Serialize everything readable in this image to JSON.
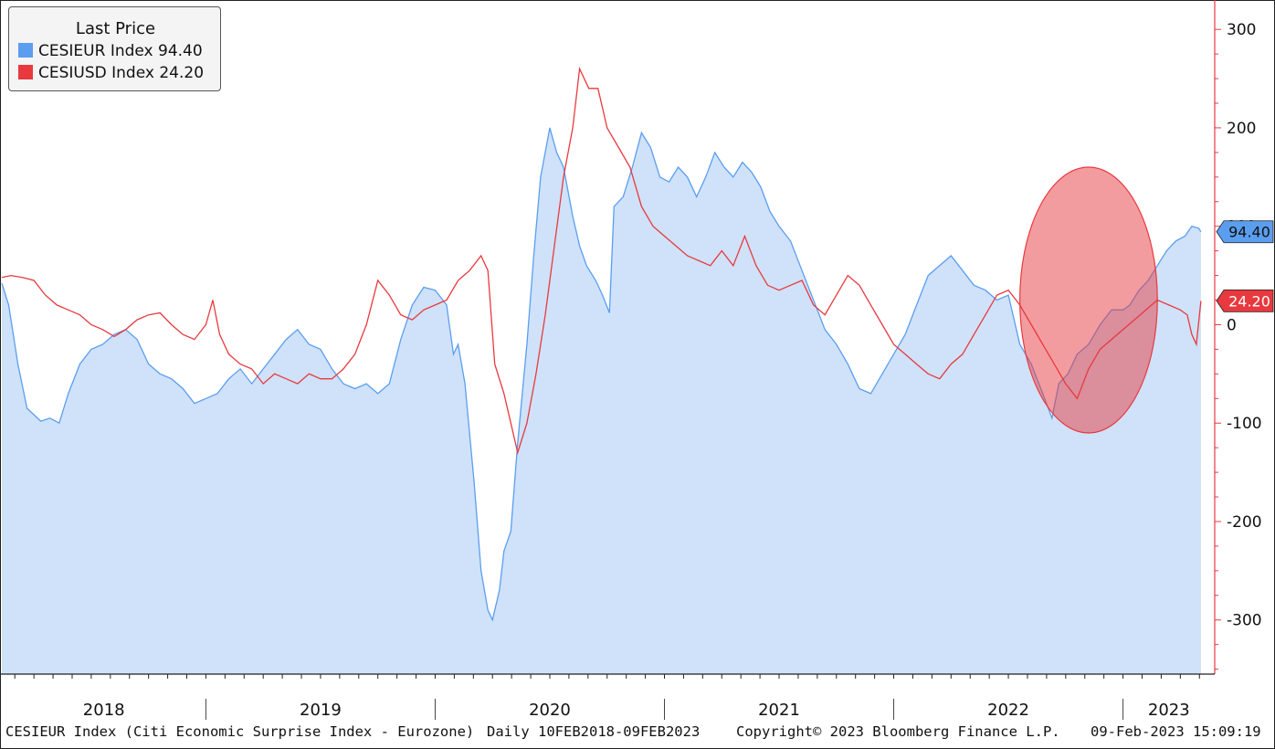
{
  "legend": {
    "title": "Last Price",
    "items": [
      {
        "label": "CESIEUR Index 94.40",
        "color": "#5b9ef0"
      },
      {
        "label": "CESIUSD Index 24.20",
        "color": "#e8393f"
      }
    ]
  },
  "footer": {
    "description": "CESIEUR Index (Citi Economic Surprise Index - Eurozone)",
    "period": "Daily 10FEB2018-09FEB2023",
    "copyright": "Copyright© 2023 Bloomberg Finance L.P.",
    "timestamp": "09-Feb-2023 15:09:19"
  },
  "chart_data": {
    "type": "area",
    "ylim": [
      -355,
      328
    ],
    "y_ticks": [
      300,
      200,
      100,
      0,
      -100,
      -200,
      -300
    ],
    "y_tick_labels": [
      "300",
      "200",
      "100",
      "0",
      "-100",
      "-200",
      "-300"
    ],
    "x_year_labels": [
      "2018",
      "2019",
      "2020",
      "2021",
      "2022",
      "2023"
    ],
    "last_value_tags": [
      {
        "text": "94.40",
        "value": 94.4,
        "color": "#5b9ef0"
      },
      {
        "text": "24.20",
        "value": 24.2,
        "color": "#e8393f"
      }
    ],
    "highlight": {
      "type": "ellipse",
      "color": "#e8393f",
      "x_range": [
        2022.55,
        2023.15
      ],
      "y_range": [
        -110,
        160
      ]
    },
    "series": [
      {
        "name": "CESIEUR Index",
        "color": "#5b9ef0",
        "fill": "#cfe2f9",
        "points": [
          [
            2018.11,
            42
          ],
          [
            2018.14,
            20
          ],
          [
            2018.18,
            -40
          ],
          [
            2018.22,
            -85
          ],
          [
            2018.28,
            -98
          ],
          [
            2018.32,
            -95
          ],
          [
            2018.36,
            -100
          ],
          [
            2018.4,
            -70
          ],
          [
            2018.45,
            -40
          ],
          [
            2018.5,
            -25
          ],
          [
            2018.55,
            -20
          ],
          [
            2018.6,
            -10
          ],
          [
            2018.65,
            -5
          ],
          [
            2018.7,
            -15
          ],
          [
            2018.75,
            -40
          ],
          [
            2018.8,
            -50
          ],
          [
            2018.85,
            -55
          ],
          [
            2018.9,
            -65
          ],
          [
            2018.95,
            -80
          ],
          [
            2019.0,
            -75
          ],
          [
            2019.05,
            -70
          ],
          [
            2019.1,
            -55
          ],
          [
            2019.15,
            -45
          ],
          [
            2019.2,
            -60
          ],
          [
            2019.25,
            -45
          ],
          [
            2019.3,
            -30
          ],
          [
            2019.35,
            -15
          ],
          [
            2019.4,
            -5
          ],
          [
            2019.45,
            -20
          ],
          [
            2019.5,
            -25
          ],
          [
            2019.55,
            -45
          ],
          [
            2019.6,
            -60
          ],
          [
            2019.65,
            -65
          ],
          [
            2019.7,
            -60
          ],
          [
            2019.75,
            -70
          ],
          [
            2019.8,
            -60
          ],
          [
            2019.85,
            -15
          ],
          [
            2019.9,
            20
          ],
          [
            2019.95,
            38
          ],
          [
            2020.0,
            35
          ],
          [
            2020.05,
            20
          ],
          [
            2020.08,
            -30
          ],
          [
            2020.1,
            -20
          ],
          [
            2020.13,
            -60
          ],
          [
            2020.15,
            -110
          ],
          [
            2020.17,
            -160
          ],
          [
            2020.2,
            -250
          ],
          [
            2020.23,
            -290
          ],
          [
            2020.25,
            -300
          ],
          [
            2020.28,
            -270
          ],
          [
            2020.3,
            -230
          ],
          [
            2020.33,
            -210
          ],
          [
            2020.36,
            -120
          ],
          [
            2020.4,
            -20
          ],
          [
            2020.43,
            70
          ],
          [
            2020.46,
            150
          ],
          [
            2020.5,
            200
          ],
          [
            2020.53,
            175
          ],
          [
            2020.56,
            160
          ],
          [
            2020.6,
            110
          ],
          [
            2020.63,
            80
          ],
          [
            2020.66,
            60
          ],
          [
            2020.7,
            45
          ],
          [
            2020.73,
            30
          ],
          [
            2020.76,
            12
          ],
          [
            2020.78,
            120
          ],
          [
            2020.82,
            130
          ],
          [
            2020.86,
            160
          ],
          [
            2020.9,
            195
          ],
          [
            2020.94,
            180
          ],
          [
            2020.98,
            150
          ],
          [
            2021.02,
            145
          ],
          [
            2021.06,
            160
          ],
          [
            2021.1,
            150
          ],
          [
            2021.14,
            130
          ],
          [
            2021.18,
            150
          ],
          [
            2021.22,
            175
          ],
          [
            2021.26,
            160
          ],
          [
            2021.3,
            150
          ],
          [
            2021.34,
            165
          ],
          [
            2021.38,
            155
          ],
          [
            2021.42,
            140
          ],
          [
            2021.46,
            115
          ],
          [
            2021.5,
            100
          ],
          [
            2021.55,
            85
          ],
          [
            2021.6,
            55
          ],
          [
            2021.65,
            25
          ],
          [
            2021.7,
            -5
          ],
          [
            2021.75,
            -20
          ],
          [
            2021.8,
            -40
          ],
          [
            2021.85,
            -65
          ],
          [
            2021.9,
            -70
          ],
          [
            2021.95,
            -50
          ],
          [
            2022.0,
            -30
          ],
          [
            2022.05,
            -10
          ],
          [
            2022.1,
            20
          ],
          [
            2022.15,
            50
          ],
          [
            2022.2,
            60
          ],
          [
            2022.25,
            70
          ],
          [
            2022.3,
            55
          ],
          [
            2022.35,
            40
          ],
          [
            2022.4,
            35
          ],
          [
            2022.45,
            25
          ],
          [
            2022.5,
            30
          ],
          [
            2022.55,
            -20
          ],
          [
            2022.6,
            -40
          ],
          [
            2022.65,
            -70
          ],
          [
            2022.69,
            -95
          ],
          [
            2022.72,
            -60
          ],
          [
            2022.76,
            -50
          ],
          [
            2022.8,
            -30
          ],
          [
            2022.85,
            -20
          ],
          [
            2022.9,
            0
          ],
          [
            2022.95,
            15
          ],
          [
            2023.0,
            15
          ],
          [
            2023.03,
            20
          ],
          [
            2023.07,
            35
          ],
          [
            2023.11,
            45
          ],
          [
            2023.15,
            60
          ],
          [
            2023.19,
            75
          ],
          [
            2023.23,
            85
          ],
          [
            2023.27,
            90
          ],
          [
            2023.3,
            100
          ],
          [
            2023.33,
            98
          ],
          [
            2023.34,
            94.4
          ]
        ]
      },
      {
        "name": "CESIUSD Index",
        "color": "#e8393f",
        "points": [
          [
            2018.11,
            48
          ],
          [
            2018.15,
            50
          ],
          [
            2018.2,
            48
          ],
          [
            2018.25,
            45
          ],
          [
            2018.3,
            30
          ],
          [
            2018.35,
            20
          ],
          [
            2018.4,
            15
          ],
          [
            2018.45,
            10
          ],
          [
            2018.5,
            0
          ],
          [
            2018.55,
            -5
          ],
          [
            2018.6,
            -12
          ],
          [
            2018.65,
            -5
          ],
          [
            2018.7,
            5
          ],
          [
            2018.75,
            10
          ],
          [
            2018.8,
            12
          ],
          [
            2018.85,
            0
          ],
          [
            2018.9,
            -10
          ],
          [
            2018.95,
            -15
          ],
          [
            2019.0,
            0
          ],
          [
            2019.03,
            25
          ],
          [
            2019.06,
            -10
          ],
          [
            2019.1,
            -30
          ],
          [
            2019.15,
            -40
          ],
          [
            2019.2,
            -45
          ],
          [
            2019.25,
            -60
          ],
          [
            2019.3,
            -50
          ],
          [
            2019.35,
            -55
          ],
          [
            2019.4,
            -60
          ],
          [
            2019.45,
            -50
          ],
          [
            2019.5,
            -55
          ],
          [
            2019.55,
            -55
          ],
          [
            2019.6,
            -45
          ],
          [
            2019.65,
            -30
          ],
          [
            2019.7,
            0
          ],
          [
            2019.75,
            45
          ],
          [
            2019.8,
            30
          ],
          [
            2019.85,
            10
          ],
          [
            2019.9,
            5
          ],
          [
            2019.95,
            15
          ],
          [
            2020.0,
            20
          ],
          [
            2020.05,
            25
          ],
          [
            2020.1,
            45
          ],
          [
            2020.15,
            55
          ],
          [
            2020.2,
            70
          ],
          [
            2020.23,
            55
          ],
          [
            2020.26,
            -40
          ],
          [
            2020.3,
            -70
          ],
          [
            2020.33,
            -100
          ],
          [
            2020.36,
            -130
          ],
          [
            2020.4,
            -100
          ],
          [
            2020.44,
            -50
          ],
          [
            2020.48,
            10
          ],
          [
            2020.52,
            80
          ],
          [
            2020.56,
            150
          ],
          [
            2020.6,
            200
          ],
          [
            2020.63,
            260
          ],
          [
            2020.67,
            240
          ],
          [
            2020.71,
            240
          ],
          [
            2020.75,
            200
          ],
          [
            2020.8,
            180
          ],
          [
            2020.85,
            160
          ],
          [
            2020.9,
            120
          ],
          [
            2020.95,
            100
          ],
          [
            2021.0,
            90
          ],
          [
            2021.05,
            80
          ],
          [
            2021.1,
            70
          ],
          [
            2021.15,
            65
          ],
          [
            2021.2,
            60
          ],
          [
            2021.25,
            75
          ],
          [
            2021.3,
            60
          ],
          [
            2021.35,
            90
          ],
          [
            2021.4,
            60
          ],
          [
            2021.45,
            40
          ],
          [
            2021.5,
            35
          ],
          [
            2021.55,
            40
          ],
          [
            2021.6,
            45
          ],
          [
            2021.65,
            20
          ],
          [
            2021.7,
            10
          ],
          [
            2021.75,
            30
          ],
          [
            2021.8,
            50
          ],
          [
            2021.85,
            40
          ],
          [
            2021.9,
            20
          ],
          [
            2021.95,
            0
          ],
          [
            2022.0,
            -20
          ],
          [
            2022.05,
            -30
          ],
          [
            2022.1,
            -40
          ],
          [
            2022.15,
            -50
          ],
          [
            2022.2,
            -55
          ],
          [
            2022.25,
            -40
          ],
          [
            2022.3,
            -30
          ],
          [
            2022.35,
            -10
          ],
          [
            2022.4,
            10
          ],
          [
            2022.45,
            30
          ],
          [
            2022.5,
            35
          ],
          [
            2022.55,
            20
          ],
          [
            2022.6,
            0
          ],
          [
            2022.65,
            -20
          ],
          [
            2022.7,
            -40
          ],
          [
            2022.75,
            -60
          ],
          [
            2022.8,
            -75
          ],
          [
            2022.85,
            -45
          ],
          [
            2022.9,
            -25
          ],
          [
            2022.95,
            -15
          ],
          [
            2023.0,
            -5
          ],
          [
            2023.05,
            5
          ],
          [
            2023.1,
            15
          ],
          [
            2023.15,
            25
          ],
          [
            2023.2,
            20
          ],
          [
            2023.25,
            15
          ],
          [
            2023.28,
            10
          ],
          [
            2023.3,
            -10
          ],
          [
            2023.32,
            -20
          ],
          [
            2023.34,
            24.2
          ]
        ]
      }
    ]
  }
}
